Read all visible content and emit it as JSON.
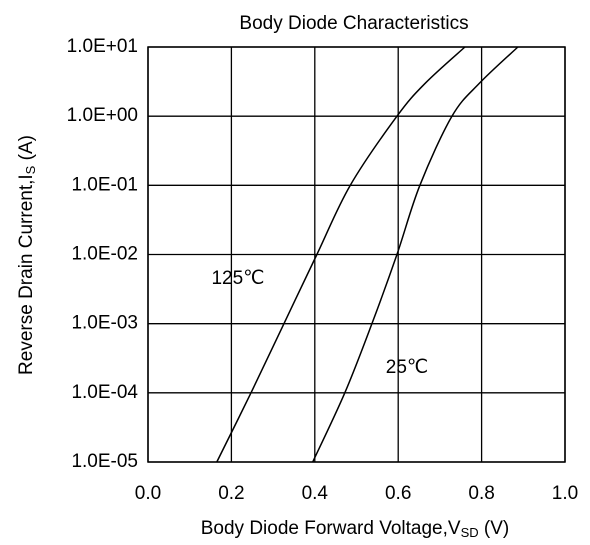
{
  "chart_data": {
    "type": "line",
    "title": "Body Diode Characteristics",
    "xlabel": [
      "Body Diode Forward Voltage,V",
      "SD",
      " (V)"
    ],
    "ylabel": [
      "Reverse Drain Current,I",
      "S",
      " (A)"
    ],
    "xlim": [
      0,
      1
    ],
    "xticks": [
      {
        "value": 0,
        "label": "0.0"
      },
      0.2,
      0.4,
      0.6,
      0.8,
      {
        "value": 1,
        "label": "1.0"
      }
    ],
    "ylim": [
      1e-05,
      10
    ],
    "yscale": "log",
    "yticks": [
      {
        "value": 1e-05,
        "label": "1.0E-05"
      },
      {
        "value": 0.0001,
        "label": "1.0E-04"
      },
      {
        "value": 0.001,
        "label": "1.0E-03"
      },
      {
        "value": 0.01,
        "label": "1.0E-02"
      },
      {
        "value": 0.1,
        "label": "1.0E-01"
      },
      {
        "value": 1,
        "label": "1.0E+00"
      },
      {
        "value": 10,
        "label": "1.0E+01"
      }
    ],
    "grid": true,
    "series": [
      {
        "name": "125℃",
        "color": "#000000",
        "x": [
          0.165,
          0.247,
          0.326,
          0.405,
          0.485,
          0.597,
          0.665,
          0.76
        ],
        "values": [
          1e-05,
          0.0001,
          0.001,
          0.01,
          0.1,
          1,
          3,
          10
        ]
      },
      {
        "name": "25℃",
        "color": "#000000",
        "x": [
          0.395,
          0.472,
          0.537,
          0.597,
          0.652,
          0.729,
          0.795,
          0.887
        ],
        "values": [
          1e-05,
          0.0001,
          0.001,
          0.01,
          0.1,
          1,
          3,
          10
        ]
      }
    ]
  }
}
